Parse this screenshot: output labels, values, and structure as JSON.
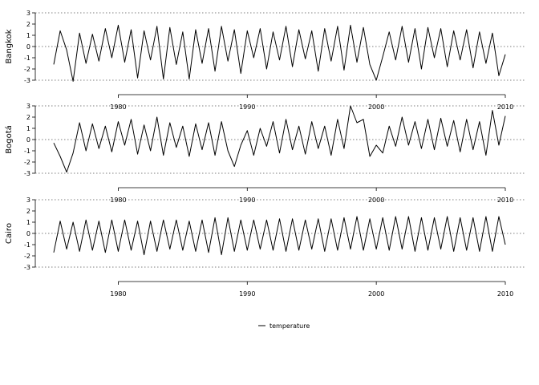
{
  "chart_data": {
    "type": "line",
    "legend": {
      "placement": "bottom-center",
      "entries": [
        "temperature"
      ]
    },
    "x_axis": {
      "range": [
        1975,
        2010
      ],
      "ticks": [
        1980,
        1990,
        2000,
        2010
      ]
    },
    "y_axis": {
      "range": [
        -3,
        3
      ],
      "ticks": [
        3,
        2,
        1,
        0,
        -1,
        -2,
        -3
      ],
      "gridlines": [
        -3,
        0,
        3
      ]
    },
    "grid": "dotted lines at y = -3, 0 and 3",
    "panels": [
      {
        "name": "Bangkok",
        "x": [
          1975.0,
          1975.5,
          1976.0,
          1976.5,
          1977.0,
          1977.5,
          1978.0,
          1978.5,
          1979.0,
          1979.5,
          1980.0,
          1980.5,
          1981.0,
          1981.5,
          1982.0,
          1982.5,
          1983.0,
          1983.5,
          1984.0,
          1984.5,
          1985.0,
          1985.5,
          1986.0,
          1986.5,
          1987.0,
          1987.5,
          1988.0,
          1988.5,
          1989.0,
          1989.5,
          1990.0,
          1990.5,
          1991.0,
          1991.5,
          1992.0,
          1992.5,
          1993.0,
          1993.5,
          1994.0,
          1994.5,
          1995.0,
          1995.5,
          1996.0,
          1996.5,
          1997.0,
          1997.5,
          1998.0,
          1998.5,
          1999.0,
          1999.5,
          2000.0,
          2000.5,
          2001.0,
          2001.5,
          2002.0,
          2002.5,
          2003.0,
          2003.5,
          2004.0,
          2004.5,
          2005.0,
          2005.5,
          2006.0,
          2006.5,
          2007.0,
          2007.5,
          2008.0,
          2008.5,
          2009.0,
          2009.5,
          2010.0
        ],
        "y": [
          -1.6,
          1.4,
          -0.3,
          -3.1,
          1.2,
          -1.5,
          1.1,
          -1.3,
          1.6,
          -1.0,
          1.9,
          -1.4,
          1.5,
          -2.8,
          1.4,
          -1.2,
          1.8,
          -2.9,
          1.7,
          -1.6,
          1.3,
          -2.9,
          1.5,
          -1.5,
          1.6,
          -2.2,
          1.8,
          -1.3,
          1.5,
          -2.4,
          1.4,
          -1.0,
          1.6,
          -2.0,
          1.3,
          -1.2,
          1.8,
          -1.8,
          1.5,
          -1.1,
          1.4,
          -2.2,
          1.6,
          -1.3,
          1.8,
          -2.1,
          1.9,
          -1.4,
          1.7,
          -1.6,
          -3.0,
          -0.9,
          1.3,
          -1.2,
          1.8,
          -1.4,
          1.6,
          -2.0,
          1.7,
          -1.0,
          1.6,
          -1.8,
          1.4,
          -1.2,
          1.5,
          -1.9,
          1.3,
          -1.5,
          1.2,
          -2.6,
          -0.7
        ]
      },
      {
        "name": "Bogotá",
        "x": [
          1975.0,
          1975.5,
          1976.0,
          1976.5,
          1977.0,
          1977.5,
          1978.0,
          1978.5,
          1979.0,
          1979.5,
          1980.0,
          1980.5,
          1981.0,
          1981.5,
          1982.0,
          1982.5,
          1983.0,
          1983.5,
          1984.0,
          1984.5,
          1985.0,
          1985.5,
          1986.0,
          1986.5,
          1987.0,
          1987.5,
          1988.0,
          1988.5,
          1989.0,
          1989.5,
          1990.0,
          1990.5,
          1991.0,
          1991.5,
          1992.0,
          1992.5,
          1993.0,
          1993.5,
          1994.0,
          1994.5,
          1995.0,
          1995.5,
          1996.0,
          1996.5,
          1997.0,
          1997.5,
          1998.0,
          1998.5,
          1999.0,
          1999.5,
          2000.0,
          2000.5,
          2001.0,
          2001.5,
          2002.0,
          2002.5,
          2003.0,
          2003.5,
          2004.0,
          2004.5,
          2005.0,
          2005.5,
          2006.0,
          2006.5,
          2007.0,
          2007.5,
          2008.0,
          2008.5,
          2009.0,
          2009.5,
          2010.0
        ],
        "y": [
          -0.3,
          -1.5,
          -2.9,
          -1.2,
          1.5,
          -1.0,
          1.4,
          -0.8,
          1.2,
          -1.1,
          1.6,
          -0.5,
          1.8,
          -1.3,
          1.3,
          -1.0,
          2.0,
          -1.4,
          1.5,
          -0.7,
          1.2,
          -1.5,
          1.4,
          -0.9,
          1.5,
          -1.4,
          1.6,
          -1.0,
          -2.4,
          -0.5,
          0.8,
          -1.4,
          1.0,
          -0.6,
          1.6,
          -1.2,
          1.8,
          -0.9,
          1.2,
          -1.3,
          1.6,
          -0.8,
          1.2,
          -1.4,
          1.8,
          -0.8,
          3.0,
          1.5,
          1.8,
          -1.5,
          -0.5,
          -1.2,
          1.2,
          -0.6,
          2.0,
          -0.5,
          1.6,
          -0.8,
          1.8,
          -0.9,
          1.9,
          -0.6,
          1.7,
          -1.1,
          1.8,
          -0.9,
          1.6,
          -1.4,
          2.6,
          -0.5,
          2.1
        ]
      },
      {
        "name": "Cairo",
        "x": [
          1975.0,
          1975.5,
          1976.0,
          1976.5,
          1977.0,
          1977.5,
          1978.0,
          1978.5,
          1979.0,
          1979.5,
          1980.0,
          1980.5,
          1981.0,
          1981.5,
          1982.0,
          1982.5,
          1983.0,
          1983.5,
          1984.0,
          1984.5,
          1985.0,
          1985.5,
          1986.0,
          1986.5,
          1987.0,
          1987.5,
          1988.0,
          1988.5,
          1989.0,
          1989.5,
          1990.0,
          1990.5,
          1991.0,
          1991.5,
          1992.0,
          1992.5,
          1993.0,
          1993.5,
          1994.0,
          1994.5,
          1995.0,
          1995.5,
          1996.0,
          1996.5,
          1997.0,
          1997.5,
          1998.0,
          1998.5,
          1999.0,
          1999.5,
          2000.0,
          2000.5,
          2001.0,
          2001.5,
          2002.0,
          2002.5,
          2003.0,
          2003.5,
          2004.0,
          2004.5,
          2005.0,
          2005.5,
          2006.0,
          2006.5,
          2007.0,
          2007.5,
          2008.0,
          2008.5,
          2009.0,
          2009.5,
          2010.0
        ],
        "y": [
          -1.7,
          1.1,
          -1.4,
          1.0,
          -1.6,
          1.2,
          -1.5,
          1.1,
          -1.7,
          1.2,
          -1.6,
          1.2,
          -1.5,
          1.1,
          -1.9,
          1.1,
          -1.6,
          1.2,
          -1.4,
          1.2,
          -1.5,
          1.1,
          -1.6,
          1.2,
          -1.7,
          1.4,
          -1.9,
          1.4,
          -1.6,
          1.2,
          -1.5,
          1.2,
          -1.4,
          1.2,
          -1.5,
          1.3,
          -1.6,
          1.3,
          -1.5,
          1.2,
          -1.4,
          1.3,
          -1.6,
          1.3,
          -1.5,
          1.4,
          -1.4,
          1.5,
          -1.5,
          1.3,
          -1.4,
          1.4,
          -1.5,
          1.5,
          -1.4,
          1.5,
          -1.6,
          1.4,
          -1.5,
          1.4,
          -1.4,
          1.5,
          -1.6,
          1.4,
          -1.5,
          1.4,
          -1.6,
          1.5,
          -1.6,
          1.5,
          -1.0
        ]
      }
    ]
  }
}
